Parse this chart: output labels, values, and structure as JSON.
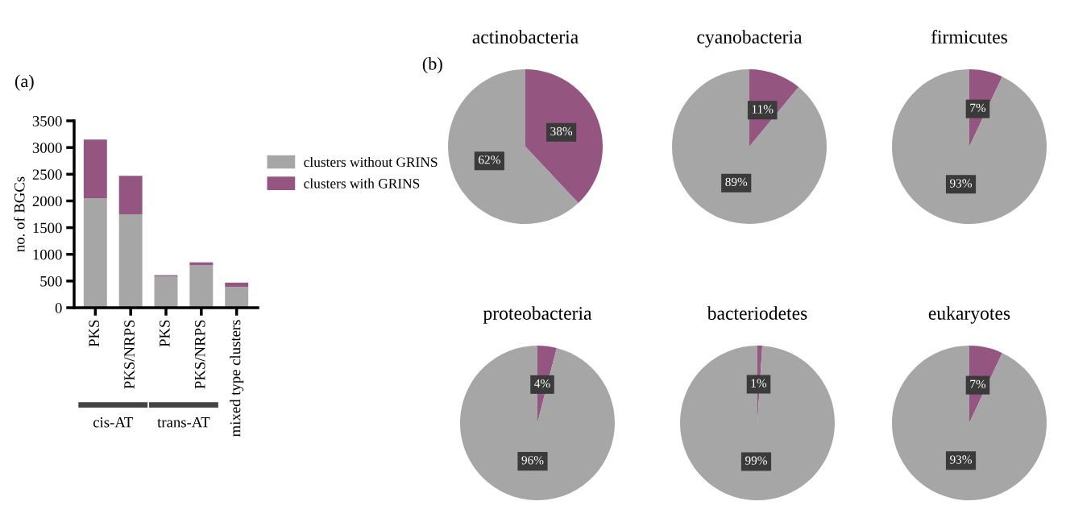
{
  "chart_data": [
    {
      "type": "bar",
      "stacked": true,
      "categories": [
        "PKS",
        "PKS/NRPS",
        "PKS",
        "PKS/NRPS",
        "mixed type clusters"
      ],
      "ylabel": "no. of BGCs",
      "ylim": [
        0,
        3500
      ],
      "yticks": [
        0,
        500,
        1000,
        1500,
        2000,
        2500,
        3000,
        3500
      ],
      "legend": "right",
      "grid": false,
      "series": [
        {
          "name": "clusters without GRINS",
          "color": "#a6a6a6",
          "values": [
            2050,
            1750,
            590,
            800,
            390
          ]
        },
        {
          "name": "clusters with GRINS",
          "color": "#955581",
          "values": [
            1100,
            720,
            20,
            50,
            80
          ]
        }
      ],
      "annotations": [
        "(a)",
        "cis-AT",
        "trans-AT"
      ]
    },
    {
      "type": "pie",
      "title": "actinobacteria",
      "categories": [
        null,
        null
      ],
      "values": [
        38,
        62
      ],
      "colors": [
        "#955581",
        "#a6a6a6"
      ],
      "value_labels": [
        "38%",
        "62%"
      ],
      "annotations": [
        "(b)"
      ]
    },
    {
      "type": "pie",
      "title": "cyanobacteria",
      "categories": [
        null,
        null
      ],
      "values": [
        11,
        89
      ],
      "colors": [
        "#955581",
        "#a6a6a6"
      ],
      "value_labels": [
        "11%",
        "89%"
      ]
    },
    {
      "type": "pie",
      "title": "firmicutes",
      "categories": [
        null,
        null
      ],
      "values": [
        7,
        93
      ],
      "colors": [
        "#955581",
        "#a6a6a6"
      ],
      "value_labels": [
        "7%",
        "93%"
      ]
    },
    {
      "type": "pie",
      "title": "proteobacteria",
      "categories": [
        null,
        null
      ],
      "values": [
        4,
        96
      ],
      "colors": [
        "#955581",
        "#a6a6a6"
      ],
      "value_labels": [
        "4%",
        "96%"
      ]
    },
    {
      "type": "pie",
      "title": "bacteriodetes",
      "categories": [
        null,
        null
      ],
      "values": [
        1,
        99
      ],
      "colors": [
        "#955581",
        "#a6a6a6"
      ],
      "value_labels": [
        "1%",
        "99%"
      ]
    },
    {
      "type": "pie",
      "title": "eukaryotes",
      "categories": [
        null,
        null
      ],
      "values": [
        7,
        93
      ],
      "colors": [
        "#955581",
        "#a6a6a6"
      ],
      "value_labels": [
        "7%",
        "93%"
      ]
    }
  ]
}
